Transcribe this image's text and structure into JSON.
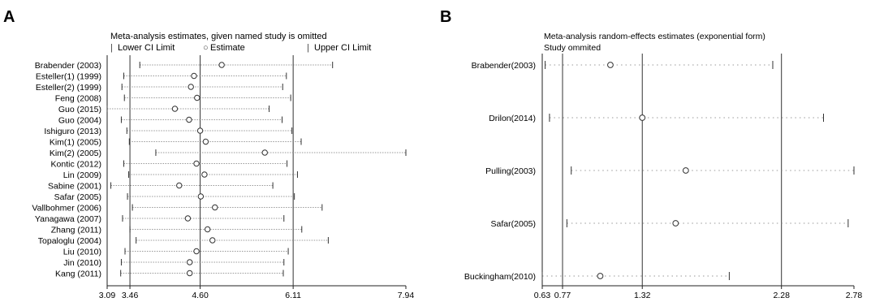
{
  "panels": [
    {
      "letter": "A",
      "header_lines": [
        "Meta-analysis estimates, given named study is omitted"
      ],
      "legend": [
        {
          "symbol": "|",
          "label": "Lower CI Limit"
        },
        {
          "symbol": "○",
          "label": "Estimate"
        },
        {
          "symbol": "|",
          "label": "Upper CI Limit"
        }
      ]
    },
    {
      "letter": "B",
      "header_lines": [
        "Meta-analysis random-effects estimates (exponential form)",
        "Study ommited"
      ],
      "legend": []
    }
  ],
  "chart_data": [
    {
      "type": "forest",
      "panel": "A",
      "title": "Meta-analysis estimates, given named study is omitted",
      "xlabel": "",
      "ylabel": "",
      "xlim": [
        3.09,
        7.94
      ],
      "x_ticks": [
        3.09,
        3.46,
        4.6,
        6.11,
        7.94
      ],
      "x_tick_labels": [
        "3.09",
        "3.46",
        "4.60",
        "6.11",
        "7.94"
      ],
      "reference_lines": [
        3.46,
        4.6,
        6.11
      ],
      "grid": false,
      "legend_placement": "top",
      "series": [
        {
          "name": "Lower CI Limit",
          "values": [
            3.62,
            3.36,
            3.33,
            3.37,
            3.09,
            3.32,
            3.41,
            3.45,
            3.88,
            3.36,
            3.44,
            3.15,
            3.42,
            3.5,
            3.34,
            3.46,
            3.56,
            3.38,
            3.32,
            3.31
          ]
        },
        {
          "name": "Estimate",
          "values": [
            4.95,
            4.5,
            4.45,
            4.55,
            4.19,
            4.42,
            4.6,
            4.69,
            5.65,
            4.54,
            4.67,
            4.26,
            4.61,
            4.84,
            4.4,
            4.72,
            4.8,
            4.54,
            4.43,
            4.43
          ]
        },
        {
          "name": "Upper CI Limit",
          "values": [
            6.75,
            6.0,
            5.94,
            6.07,
            5.72,
            5.93,
            6.09,
            6.24,
            7.94,
            6.01,
            6.18,
            5.78,
            6.13,
            6.58,
            5.96,
            6.25,
            6.68,
            6.03,
            5.96,
            5.95
          ]
        }
      ],
      "categories": [
        "Brabender (2003)",
        "Esteller(1) (1999)",
        "Esteller(2) (1999)",
        "Feng (2008)",
        "Guo (2015)",
        "Guo (2004)",
        "Ishiguro (2013)",
        "Kim(1) (2005)",
        "Kim(2) (2005)",
        "Kontic (2012)",
        "Lin (2009)",
        "Sabine (2001)",
        "Safar (2005)",
        "Vallbohmer (2006)",
        "Yanagawa (2007)",
        "Zhang (2011)",
        "Topaloglu (2004)",
        "Liu (2010)",
        "Jin (2010)",
        "Kang (2011)"
      ]
    },
    {
      "type": "forest",
      "panel": "B",
      "title": "Meta-analysis random-effects estimates (exponential form)",
      "subtitle": "Study ommited",
      "xlabel": "",
      "ylabel": "",
      "xlim": [
        0.63,
        2.78
      ],
      "x_ticks": [
        0.63,
        0.77,
        1.32,
        2.28,
        2.78
      ],
      "x_tick_labels": [
        "0.63",
        "0.77",
        "1.32",
        "2.28",
        "2.78"
      ],
      "reference_lines": [
        0.77,
        1.32,
        2.28
      ],
      "grid": false,
      "categories": [
        "Brabender(2003)",
        "Drilon(2014)",
        "Pulling(2003)",
        "Safar(2005)",
        "Buckingham(2010)"
      ],
      "series": [
        {
          "name": "",
          "values": [
            0.65,
            0.68,
            0.83,
            0.8,
            0.63
          ]
        },
        {
          "name": "",
          "values": [
            1.1,
            1.32,
            1.62,
            1.55,
            1.03
          ]
        },
        {
          "name": "",
          "values": [
            2.22,
            2.57,
            2.78,
            2.74,
            1.92
          ]
        }
      ]
    }
  ]
}
